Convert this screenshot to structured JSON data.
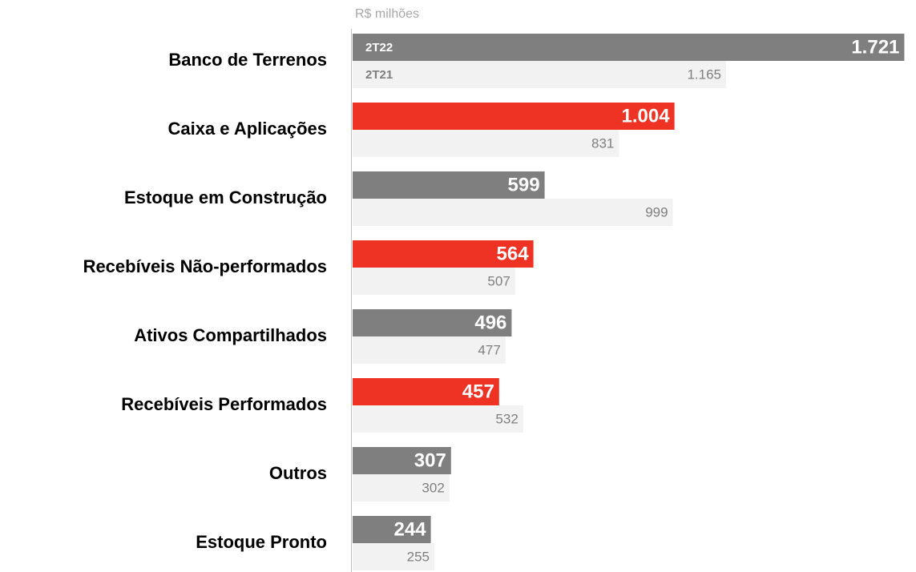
{
  "chart_data": {
    "type": "barh",
    "xlabel": "R$ milhões",
    "categories": [
      "Banco de Terrenos",
      "Caixa e Aplicações",
      "Estoque em Construção",
      "Recebíveis Não-performados",
      "Ativos Compartilhados",
      "Recebíveis Performados",
      "Outros",
      "Estoque Pronto"
    ],
    "series": [
      {
        "name": "2T22",
        "colors": [
          "#7f7f7f",
          "#ee3224",
          "#7f7f7f",
          "#ee3224",
          "#7f7f7f",
          "#ee3224",
          "#7f7f7f",
          "#7f7f7f"
        ],
        "values": [
          1721,
          1004,
          599,
          564,
          496,
          457,
          307,
          244
        ],
        "value_labels": [
          "1.721",
          "1.004",
          "599",
          "564",
          "496",
          "457",
          "307",
          "244"
        ]
      },
      {
        "name": "2T21",
        "color": "#f2f2f2",
        "values": [
          1165,
          831,
          999,
          507,
          477,
          532,
          302,
          255
        ],
        "value_labels": [
          "1.165",
          "831",
          "999",
          "507",
          "477",
          "532",
          "302",
          "255"
        ]
      }
    ],
    "xlim": [
      0,
      1750
    ]
  }
}
